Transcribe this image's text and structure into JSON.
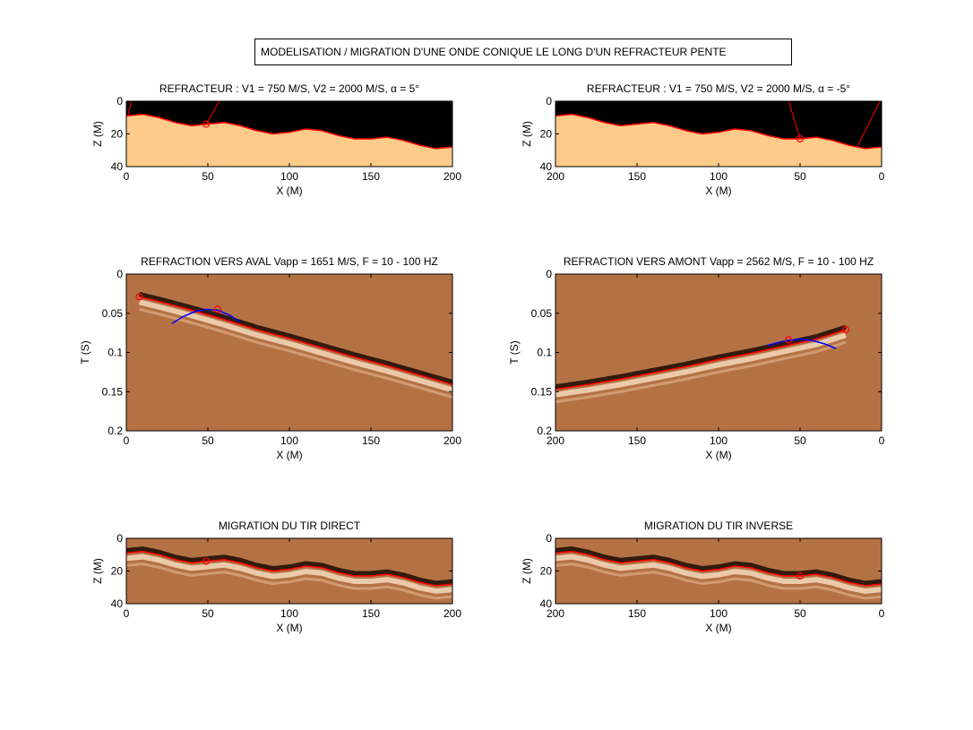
{
  "figure": {
    "main_title": "MODELISATION / MIGRATION D'UNE ONDE CONIQUE LE LONG D'UN REFRACTEUR PENTE"
  },
  "colors": {
    "medium_fill": "#fecb8a",
    "air_fill": "#000000",
    "seismic_bg": "#b47244",
    "interface_line": "#ff0000",
    "hyperbola": "#0000ff"
  },
  "chart_data": [
    {
      "id": "top-left",
      "type": "area",
      "title": "REFRACTEUR : V1 = 750 M/S, V2 = 2000 M/S, α = 5°",
      "xlabel": "X (M)",
      "ylabel": "Z (M)",
      "xlim": [
        0,
        200
      ],
      "ylim": [
        0,
        40
      ],
      "x_reversed": false,
      "xticks": [
        0,
        50,
        100,
        150,
        200
      ],
      "yticks": [
        0,
        20,
        40
      ],
      "interface": {
        "x": [
          0,
          10,
          20,
          30,
          40,
          50,
          60,
          70,
          80,
          90,
          100,
          110,
          120,
          130,
          140,
          150,
          160,
          170,
          180,
          190,
          200
        ],
        "z": [
          9,
          8,
          10,
          13,
          15,
          14,
          13,
          15,
          18,
          20,
          19,
          17,
          18,
          21,
          23,
          23,
          22,
          24,
          27,
          29,
          28
        ]
      },
      "source_point": {
        "x": 49,
        "z": 14
      },
      "rays": [
        {
          "x": [
            49,
            57
          ],
          "z": [
            14,
            0
          ]
        },
        {
          "x": [
            1,
            3
          ],
          "z": [
            9,
            0
          ]
        }
      ]
    },
    {
      "id": "top-right",
      "type": "area",
      "title": "REFRACTEUR : V1 = 750 M/S, V2 = 2000 M/S, α = -5°",
      "xlabel": "X (M)",
      "ylabel": "Z (M)",
      "xlim": [
        200,
        0
      ],
      "ylim": [
        0,
        40
      ],
      "x_reversed": true,
      "xticks": [
        200,
        150,
        100,
        50,
        0
      ],
      "yticks": [
        0,
        20,
        40
      ],
      "interface": {
        "x": [
          200,
          190,
          180,
          170,
          160,
          150,
          140,
          130,
          120,
          110,
          100,
          90,
          80,
          70,
          60,
          50,
          40,
          30,
          20,
          10,
          0
        ],
        "z": [
          9,
          8,
          10,
          13,
          15,
          14,
          13,
          15,
          18,
          20,
          19,
          17,
          18,
          21,
          23,
          23,
          22,
          24,
          27,
          29,
          28
        ]
      },
      "source_point": {
        "x": 50,
        "z": 23
      },
      "rays": [
        {
          "x": [
            50,
            57
          ],
          "z": [
            23,
            0
          ]
        },
        {
          "x": [
            15,
            1
          ],
          "z": [
            28,
            0
          ]
        }
      ]
    },
    {
      "id": "middle-left",
      "type": "heatmap",
      "title": "REFRACTION VERS AVAL Vapp = 1651 M/S, F = 10 - 100 HZ",
      "xlabel": "X (M)",
      "ylabel": "T (S)",
      "xlim": [
        0,
        200
      ],
      "ylim": [
        0,
        0.2
      ],
      "x_reversed": false,
      "xticks": [
        0,
        50,
        100,
        150,
        200
      ],
      "yticks": [
        0,
        0.05,
        0.1,
        0.15,
        0.2
      ],
      "first_arrival": {
        "x": [
          8,
          20,
          40,
          60,
          80,
          100,
          120,
          140,
          160,
          180,
          200
        ],
        "t": [
          0.029,
          0.035,
          0.046,
          0.058,
          0.071,
          0.082,
          0.094,
          0.106,
          0.117,
          0.129,
          0.141
        ]
      },
      "hyperbola": {
        "x": [
          28,
          35,
          42,
          49,
          56,
          63,
          70
        ],
        "t": [
          0.063,
          0.054,
          0.048,
          0.045,
          0.046,
          0.052,
          0.061
        ]
      },
      "markers": [
        {
          "x": 8,
          "t": 0.029
        },
        {
          "x": 56,
          "t": 0.045
        }
      ]
    },
    {
      "id": "middle-right",
      "type": "heatmap",
      "title": "REFRACTION VERS AMONT Vapp = 2562 M/S, F = 10 - 100 HZ",
      "xlabel": "X (M)",
      "ylabel": "T (S)",
      "xlim": [
        200,
        0
      ],
      "ylim": [
        0,
        0.2
      ],
      "x_reversed": true,
      "xticks": [
        200,
        150,
        100,
        50,
        0
      ],
      "yticks": [
        0,
        0.05,
        0.1,
        0.15,
        0.2
      ],
      "first_arrival": {
        "x": [
          200,
          180,
          160,
          140,
          120,
          100,
          80,
          60,
          40,
          22
        ],
        "t": [
          0.147,
          0.141,
          0.134,
          0.126,
          0.118,
          0.109,
          0.101,
          0.092,
          0.083,
          0.071
        ]
      },
      "hyperbola": {
        "x": [
          70,
          63,
          56,
          49,
          42,
          35,
          28
        ],
        "t": [
          0.091,
          0.087,
          0.084,
          0.083,
          0.085,
          0.089,
          0.095
        ]
      },
      "markers": [
        {
          "x": 22,
          "t": 0.071
        },
        {
          "x": 57,
          "t": 0.084
        }
      ]
    },
    {
      "id": "bottom-left",
      "type": "heatmap",
      "title": "MIGRATION DU TIR DIRECT",
      "xlabel": "X (M)",
      "ylabel": "Z (M)",
      "xlim": [
        0,
        200
      ],
      "ylim": [
        0,
        40
      ],
      "x_reversed": false,
      "xticks": [
        0,
        50,
        100,
        150,
        200
      ],
      "yticks": [
        0,
        20,
        40
      ],
      "interface": {
        "x": [
          0,
          10,
          20,
          30,
          40,
          50,
          60,
          70,
          80,
          90,
          100,
          110,
          120,
          130,
          140,
          150,
          160,
          170,
          180,
          190,
          200
        ],
        "z": [
          9,
          8,
          10,
          13,
          15,
          14,
          13,
          15,
          18,
          20,
          19,
          17,
          18,
          21,
          23,
          23,
          22,
          24,
          27,
          29,
          28
        ]
      },
      "source_point": {
        "x": 49,
        "z": 14
      }
    },
    {
      "id": "bottom-right",
      "type": "heatmap",
      "title": "MIGRATION DU TIR INVERSE",
      "xlabel": "X (M)",
      "ylabel": "Z (M)",
      "xlim": [
        200,
        0
      ],
      "ylim": [
        0,
        40
      ],
      "x_reversed": true,
      "xticks": [
        200,
        150,
        100,
        50,
        0
      ],
      "yticks": [
        0,
        20,
        40
      ],
      "interface": {
        "x": [
          200,
          190,
          180,
          170,
          160,
          150,
          140,
          130,
          120,
          110,
          100,
          90,
          80,
          70,
          60,
          50,
          40,
          30,
          20,
          10,
          0
        ],
        "z": [
          9,
          8,
          10,
          13,
          15,
          14,
          13,
          15,
          18,
          20,
          19,
          17,
          18,
          21,
          23,
          23,
          22,
          24,
          27,
          29,
          28
        ]
      },
      "source_point": {
        "x": 50,
        "z": 23
      }
    }
  ]
}
